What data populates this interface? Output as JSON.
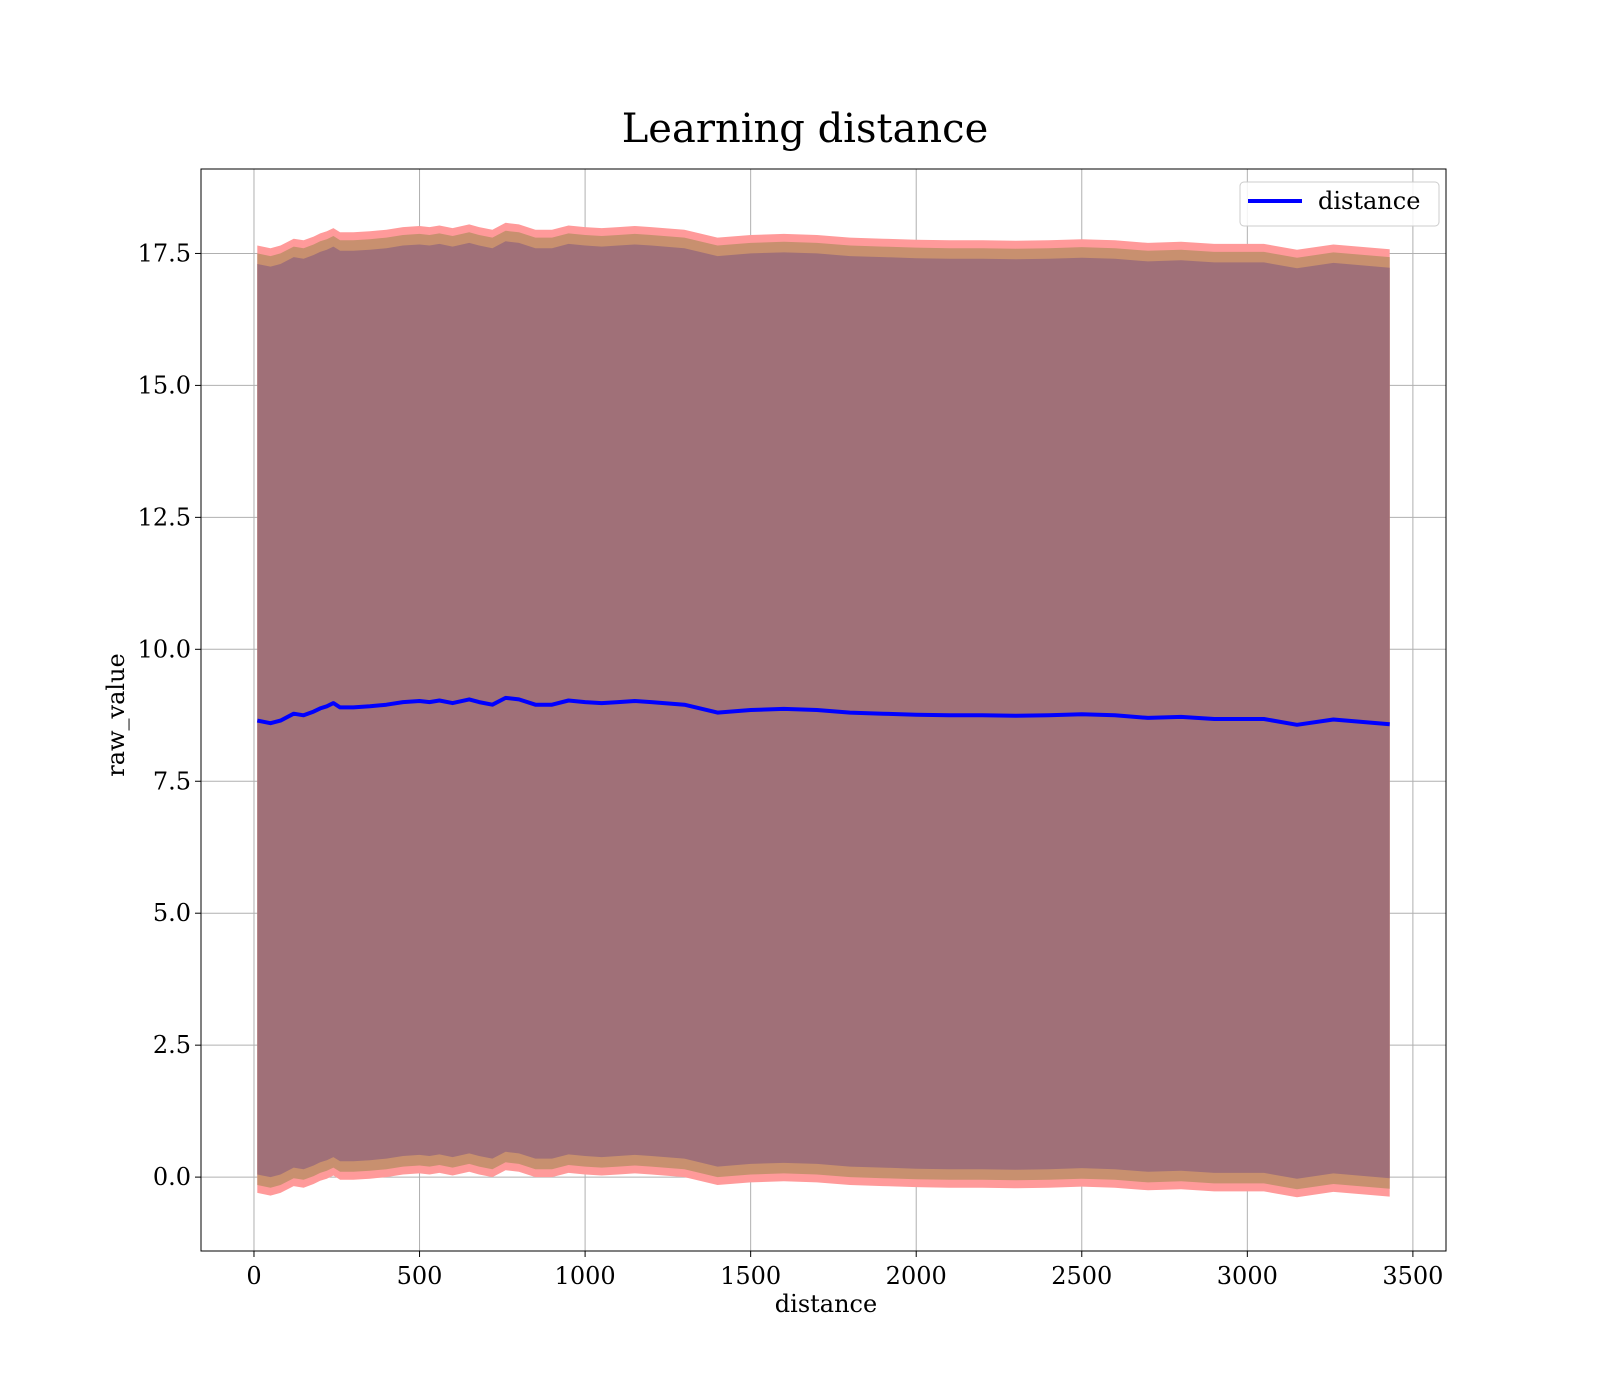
{
  "chart_data": {
    "type": "line",
    "title": "Learning distance",
    "xlabel": "distance",
    "ylabel": "raw_value",
    "xlim": [
      -160,
      3600
    ],
    "ylim": [
      -1.4,
      19.1
    ],
    "xticks": [
      0,
      500,
      1000,
      1500,
      2000,
      2500,
      3000,
      3500
    ],
    "xtick_labels": [
      "0",
      "500",
      "1000",
      "1500",
      "2000",
      "2500",
      "3000",
      "3500"
    ],
    "yticks": [
      0,
      2.5,
      5,
      7.5,
      10,
      12.5,
      15,
      17.5
    ],
    "ytick_labels": [
      "0.0",
      "2.5",
      "5.0",
      "7.5",
      "10.0",
      "12.5",
      "15.0",
      "17.5"
    ],
    "grid": true,
    "legend": {
      "placement": "top-right",
      "entries": [
        "distance"
      ]
    },
    "colors": {
      "line": "#0000ff",
      "band_outer": "#ff9a9a",
      "band_middle": "#c8906f",
      "band_inner": "#a07078"
    },
    "x": [
      10,
      50,
      80,
      120,
      150,
      180,
      200,
      220,
      240,
      260,
      300,
      350,
      400,
      450,
      500,
      530,
      560,
      600,
      650,
      680,
      720,
      760,
      800,
      850,
      900,
      950,
      1000,
      1050,
      1100,
      1150,
      1200,
      1300,
      1400,
      1500,
      1600,
      1700,
      1800,
      1900,
      2000,
      2100,
      2200,
      2300,
      2400,
      2500,
      2600,
      2700,
      2800,
      2900,
      3000,
      3050,
      3150,
      3260,
      3430
    ],
    "series": [
      {
        "name": "distance",
        "values": [
          8.65,
          8.6,
          8.65,
          8.78,
          8.75,
          8.82,
          8.88,
          8.92,
          8.98,
          8.9,
          8.9,
          8.92,
          8.95,
          9.0,
          9.02,
          9.0,
          9.03,
          8.98,
          9.05,
          9.0,
          8.95,
          9.08,
          9.05,
          8.95,
          8.95,
          9.03,
          9.0,
          8.98,
          9.0,
          9.02,
          9.0,
          8.95,
          8.8,
          8.85,
          8.87,
          8.85,
          8.8,
          8.78,
          8.76,
          8.75,
          8.75,
          8.74,
          8.75,
          8.77,
          8.75,
          8.7,
          8.72,
          8.68,
          8.68,
          8.68,
          8.57,
          8.67,
          8.58
        ]
      }
    ],
    "bands": [
      {
        "name": "outer",
        "lower_offset": -8.95,
        "upper_offset": 9.0
      },
      {
        "name": "middle",
        "lower_offset": -8.8,
        "upper_offset": 8.85
      },
      {
        "name": "inner",
        "lower_offset": -8.6,
        "upper_offset": 8.65
      }
    ]
  }
}
